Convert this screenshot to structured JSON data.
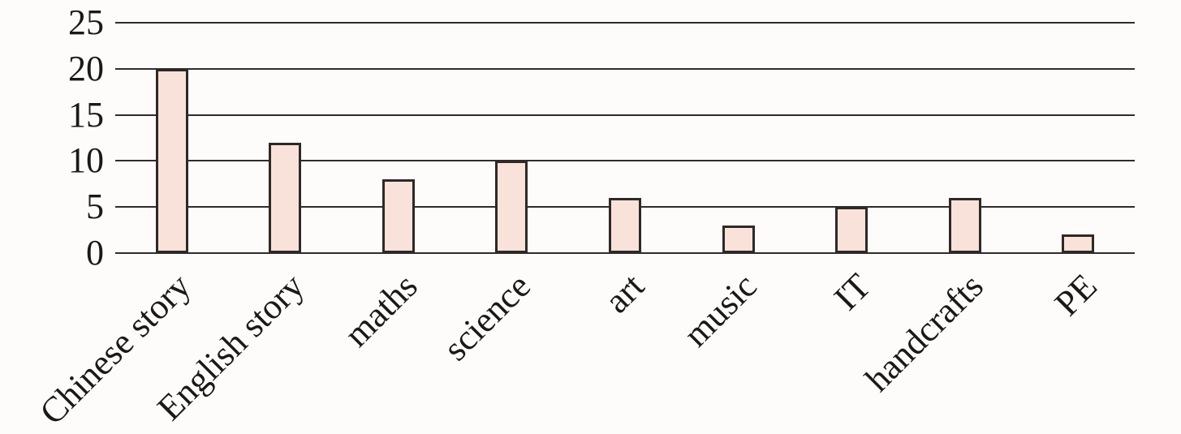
{
  "chart_data": {
    "type": "bar",
    "categories": [
      "Chinese story",
      "English story",
      "maths",
      "science",
      "art",
      "music",
      "IT",
      "handcrafts",
      "PE"
    ],
    "values": [
      20,
      12,
      8,
      10,
      6,
      3,
      5,
      6,
      2
    ],
    "title": "",
    "xlabel": "",
    "ylabel": "",
    "ylim": [
      0,
      25
    ],
    "yticks": [
      0,
      5,
      10,
      15,
      20,
      25
    ],
    "grid": true,
    "legend": "none",
    "colors": {
      "bar_fill": "#f9e2d9",
      "bar_border": "#2e2927",
      "grid_line": "#2f2d2b",
      "text": "#1b1816",
      "background": "#fdfcfa"
    }
  }
}
